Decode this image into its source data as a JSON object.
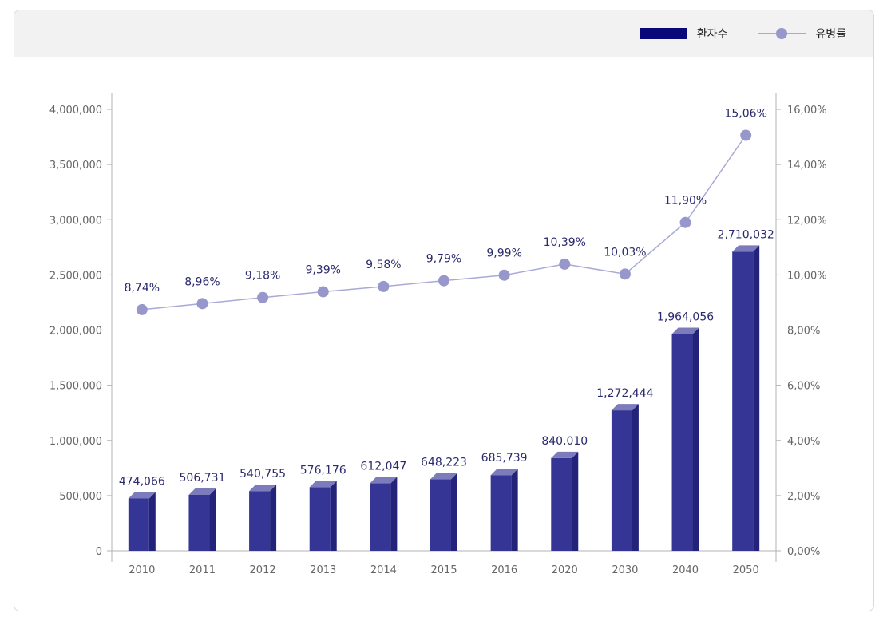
{
  "legend": {
    "bar_label": "환자수",
    "line_label": "유병률"
  },
  "colors": {
    "bar_front": "#353596",
    "bar_side": "#23237a",
    "bar_top": "#7c7cbc",
    "legend_bar": "#08087a",
    "line": "#a9a9d6",
    "marker": "#9797cc",
    "label_text": "#2a2a6e",
    "axis_text": "#666666",
    "axis_line": "#999999"
  },
  "chart_data": {
    "type": "bar",
    "categories": [
      "2010",
      "2011",
      "2012",
      "2013",
      "2014",
      "2015",
      "2016",
      "2020",
      "2030",
      "2040",
      "2050"
    ],
    "series": [
      {
        "name": "환자수",
        "type": "bar",
        "axis": "left",
        "values": [
          474066,
          506731,
          540755,
          576176,
          612047,
          648223,
          685739,
          840010,
          1272444,
          1964056,
          2710032
        ],
        "labels": [
          "474,066",
          "506,731",
          "540,755",
          "576,176",
          "612,047",
          "648,223",
          "685,739",
          "840,010",
          "1,272,444",
          "1,964,056",
          "2,710,032"
        ]
      },
      {
        "name": "유병률",
        "type": "line",
        "axis": "right",
        "values": [
          8.74,
          8.96,
          9.18,
          9.39,
          9.58,
          9.79,
          9.99,
          10.39,
          10.03,
          11.9,
          15.06
        ],
        "labels": [
          "8,74%",
          "8,96%",
          "9,18%",
          "9,39%",
          "9,58%",
          "9,79%",
          "9,99%",
          "10,39%",
          "10,03%",
          "11,90%",
          "15,06%"
        ]
      }
    ],
    "y_left": {
      "ylim": [
        0,
        4000000
      ],
      "ticks": [
        0,
        500000,
        1000000,
        1500000,
        2000000,
        2500000,
        3000000,
        3500000,
        4000000
      ],
      "tick_labels": [
        "0",
        "500,000",
        "1,000,000",
        "1,500,000",
        "2,000,000",
        "2,500,000",
        "3,000,000",
        "3,500,000",
        "4,000,000"
      ]
    },
    "y_right": {
      "ylim": [
        0,
        16
      ],
      "ticks": [
        0,
        2,
        4,
        6,
        8,
        10,
        12,
        14,
        16
      ],
      "tick_labels": [
        "0,00%",
        "2,00%",
        "4,00%",
        "6,00%",
        "8,00%",
        "10,00%",
        "12,00%",
        "14,00%",
        "16,00%"
      ]
    },
    "legend_position": "top-right",
    "grid": false
  }
}
